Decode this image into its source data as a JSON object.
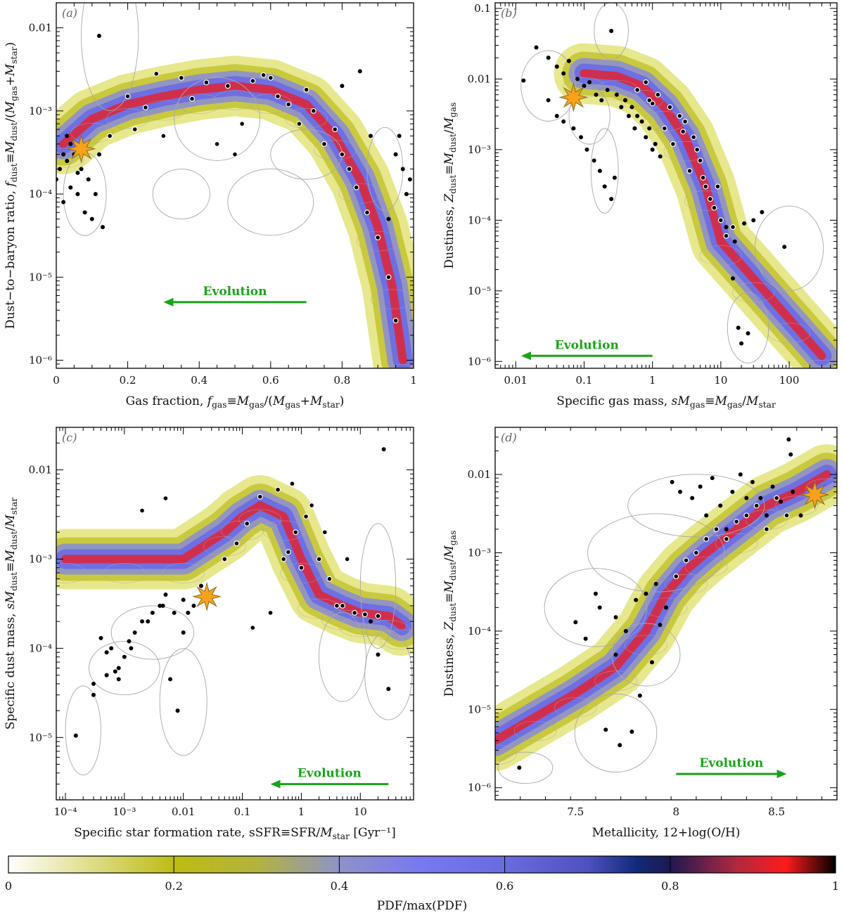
{
  "chart_data": [
    {
      "id": "a",
      "type": "scatter",
      "panel_label": "(a)",
      "xlabel": "Gas fraction, f_gas≡M_gas/(M_gas+M_star)",
      "ylabel": "Dust−to−baryon ratio, f_dust≡M_dust/(M_gas+M_star)",
      "xscale": "linear",
      "yscale": "log",
      "xlim": [
        0,
        1
      ],
      "ylim": [
        8e-07,
        0.02
      ],
      "xticks": [
        0,
        0.2,
        0.4,
        0.6,
        0.8,
        1
      ],
      "xtick_labels": [
        "0",
        "0.2",
        "0.4",
        "0.6",
        "0.8",
        "1"
      ],
      "yticks": [
        1e-06,
        1e-05,
        0.0001,
        0.001,
        0.01
      ],
      "ytick_labels": [
        "10⁻⁶",
        "10⁻⁵",
        "10⁻⁴",
        "10⁻³",
        "0.01"
      ],
      "evolution": {
        "label": "Evolution",
        "from_x": 0.7,
        "to_x": 0.3,
        "y": 5e-06
      },
      "milky_way_star": {
        "x": 0.07,
        "y": 0.00035
      },
      "pdf_ridge": {
        "x": [
          0.02,
          0.1,
          0.2,
          0.3,
          0.4,
          0.5,
          0.6,
          0.7,
          0.78,
          0.85,
          0.9,
          0.94,
          0.97
        ],
        "y": [
          0.0004,
          0.0008,
          0.0012,
          0.0015,
          0.0018,
          0.002,
          0.0018,
          0.0012,
          0.0005,
          0.00015,
          4e-05,
          8e-06,
          1e-06
        ]
      },
      "points_highlight": {
        "x": [
          0.35,
          0.42,
          0.48,
          0.55,
          0.6,
          0.62,
          0.65,
          0.7,
          0.72,
          0.78,
          0.8,
          0.82,
          0.84,
          0.87,
          0.9,
          0.93,
          0.95,
          0.2,
          0.25,
          0.3,
          0.45,
          0.5,
          0.15,
          0.22,
          0.28,
          0.38,
          0.52,
          0.58,
          0.68,
          0.75
        ],
        "y": [
          0.0025,
          0.0022,
          0.002,
          0.0023,
          0.0025,
          0.0015,
          0.0012,
          0.0018,
          0.001,
          0.0006,
          0.0003,
          0.0002,
          0.00012,
          6e-05,
          3e-05,
          1e-05,
          3e-06,
          0.0015,
          0.0011,
          0.0005,
          0.0004,
          0.0003,
          0.0005,
          0.0006,
          0.0028,
          0.0014,
          0.0007,
          0.0027,
          0.0007,
          0.0004
        ]
      },
      "points_plain": {
        "x": [
          0.0,
          0.01,
          0.02,
          0.03,
          0.04,
          0.05,
          0.06,
          0.08,
          0.1,
          0.12,
          0.13,
          0.02,
          0.04,
          0.06,
          0.09,
          0.11,
          0.07,
          0.03,
          0.12,
          0.97,
          0.98,
          0.95,
          0.96,
          0.99,
          0.93,
          0.88,
          0.85,
          0.8
        ],
        "y": [
          0.00015,
          0.0002,
          8e-05,
          0.00025,
          0.00012,
          0.0003,
          0.0001,
          6e-05,
          5e-05,
          0.008,
          4e-05,
          0.0003,
          0.0004,
          0.00018,
          0.00015,
          0.0001,
          0.0002,
          0.0005,
          0.0003,
          0.0002,
          0.0001,
          0.0003,
          0.0005,
          0.00015,
          5e-05,
          0.0005,
          0.003,
          0.002
        ]
      },
      "ellipses": [
        [
          0.15,
          0.008,
          0.08,
          0.9
        ],
        [
          0.08,
          0.0001,
          0.06,
          0.5
        ],
        [
          0.6,
          8e-05,
          0.12,
          0.4
        ],
        [
          0.35,
          0.0001,
          0.08,
          0.3
        ],
        [
          0.92,
          0.0002,
          0.05,
          0.5
        ],
        [
          0.7,
          0.0003,
          0.1,
          0.3
        ],
        [
          0.45,
          0.0008,
          0.12,
          0.5
        ]
      ]
    },
    {
      "id": "b",
      "type": "scatter",
      "panel_label": "(b)",
      "xlabel": "Specific gas mass, sM_gas≡M_gas/M_star",
      "ylabel": "Dustiness, Z_dust≡M_dust/M_gas",
      "xscale": "log",
      "yscale": "log",
      "xlim": [
        0.005,
        500
      ],
      "ylim": [
        8e-07,
        0.12
      ],
      "xticks": [
        0.01,
        0.1,
        1,
        10,
        100
      ],
      "xtick_labels": [
        "0.01",
        "0.1",
        "1",
        "10",
        "100"
      ],
      "yticks": [
        1e-06,
        1e-05,
        0.0001,
        0.001,
        0.01,
        0.1
      ],
      "ytick_labels": [
        "10⁻⁶",
        "10⁻⁵",
        "10⁻⁴",
        "10⁻³",
        "0.01",
        "0.1"
      ],
      "evolution": {
        "label": "Evolution",
        "from_x": 1,
        "to_x": 0.012,
        "y": 1.2e-06
      },
      "milky_way_star": {
        "x": 0.07,
        "y": 0.0055
      },
      "pdf_ridge": {
        "x": [
          0.1,
          0.3,
          0.7,
          1.5,
          3,
          6,
          10,
          30,
          100,
          300
        ],
        "y": [
          0.012,
          0.011,
          0.008,
          0.004,
          0.0015,
          0.0003,
          5e-05,
          1.5e-05,
          4e-06,
          1.2e-06
        ]
      },
      "points_highlight": {
        "x": [
          0.8,
          1.2,
          1.8,
          2.5,
          3,
          4,
          5,
          6,
          8,
          1.5,
          2,
          0.6,
          3.5,
          7,
          10,
          12,
          4.5,
          2.8,
          1,
          0.9,
          5.5,
          9,
          15
        ],
        "y": [
          0.009,
          0.006,
          0.004,
          0.003,
          0.0025,
          0.0015,
          0.0007,
          0.0003,
          0.00015,
          0.002,
          0.0012,
          0.007,
          0.0005,
          0.0002,
          0.0001,
          6e-05,
          0.001,
          0.0018,
          0.0045,
          0.005,
          0.0004,
          0.0003,
          8e-05
        ]
      },
      "points_plain": {
        "x": [
          0.013,
          0.02,
          0.03,
          0.04,
          0.05,
          0.06,
          0.08,
          0.1,
          0.12,
          0.15,
          0.18,
          0.22,
          0.25,
          0.3,
          0.35,
          0.4,
          0.45,
          0.5,
          0.55,
          0.6,
          0.7,
          0.8,
          0.9,
          1.0,
          1.1,
          1.3,
          0.03,
          0.04,
          0.05,
          0.07,
          0.09,
          0.11,
          0.14,
          0.17,
          0.2,
          0.25,
          0.28,
          85,
          15,
          18,
          20,
          25,
          30,
          40,
          12,
          16,
          22
        ],
        "y": [
          0.0095,
          0.028,
          0.02,
          0.015,
          0.012,
          0.018,
          0.01,
          0.008,
          0.009,
          0.006,
          0.005,
          0.007,
          0.048,
          0.006,
          0.004,
          0.005,
          0.003,
          0.004,
          0.002,
          0.003,
          0.0025,
          0.0015,
          0.002,
          0.001,
          0.0012,
          0.0008,
          0.005,
          0.003,
          0.0025,
          0.002,
          0.0015,
          0.001,
          0.0007,
          0.0005,
          0.0003,
          0.0002,
          0.0004,
          4.2e-05,
          1.5e-05,
          3e-06,
          1.8e-06,
          2.5e-06,
          0.0001,
          0.00013,
          8e-05,
          5e-05,
          9e-05
        ]
      },
      "ellipses": [
        [
          0.25,
          0.048,
          0.25,
          0.4
        ],
        [
          0.03,
          0.008,
          0.4,
          0.5
        ],
        [
          100,
          4e-05,
          0.5,
          0.6
        ],
        [
          25,
          3e-06,
          0.3,
          0.5
        ],
        [
          0.12,
          0.003,
          0.3,
          0.4
        ],
        [
          0.2,
          0.0005,
          0.2,
          0.6
        ]
      ]
    },
    {
      "id": "c",
      "type": "scatter",
      "panel_label": "(c)",
      "xlabel": "Specific star formation rate, sSFR≡SFR/M_star [Gyr⁻¹]",
      "ylabel": "Specific dust mass, sM_dust≡M_dust/M_star",
      "xscale": "log",
      "yscale": "log",
      "xlim": [
        7e-05,
        80
      ],
      "ylim": [
        2e-06,
        0.03
      ],
      "xticks": [
        0.0001,
        0.001,
        0.01,
        0.1,
        1,
        10
      ],
      "xtick_labels": [
        "10⁻⁴",
        "10⁻³",
        "0.01",
        "0.1",
        "1",
        "10"
      ],
      "yticks": [
        1e-05,
        0.0001,
        0.001,
        0.01
      ],
      "ytick_labels": [
        "10⁻⁵",
        "10⁻⁴",
        "10⁻³",
        "0.01"
      ],
      "evolution": {
        "label": "Evolution",
        "from_x": 30,
        "to_x": 0.3,
        "y": 3e-06
      },
      "milky_way_star": {
        "x": 0.025,
        "y": 0.00038
      },
      "pdf_ridge": {
        "x": [
          0.0001,
          0.001,
          0.01,
          0.05,
          0.1,
          0.2,
          0.5,
          1,
          2,
          5,
          10,
          30,
          50
        ],
        "y": [
          0.001,
          0.001,
          0.001,
          0.002,
          0.003,
          0.004,
          0.003,
          0.001,
          0.0004,
          0.0003,
          0.00025,
          0.00023,
          0.00018
        ]
      },
      "points_highlight": {
        "x": [
          0.002,
          0.005,
          0.15,
          0.3,
          0.5,
          0.8,
          1.2,
          2,
          3,
          4,
          5,
          8,
          12,
          20,
          0.05,
          0.08,
          0.12,
          0.2,
          0.4,
          0.7,
          1.5,
          2.5,
          6,
          0.6,
          1
        ],
        "y": [
          0.0035,
          0.0048,
          0.00017,
          0.00025,
          0.001,
          0.002,
          0.003,
          0.001,
          0.0006,
          0.0003,
          0.0003,
          0.00025,
          0.00024,
          0.00023,
          0.001,
          0.0015,
          0.0025,
          0.005,
          0.006,
          0.007,
          0.004,
          0.002,
          0.001,
          0.0012,
          0.0008
        ]
      },
      "points_plain": {
        "x": [
          0.00015,
          0.0003,
          0.0004,
          0.0005,
          0.0006,
          0.0007,
          0.0008,
          0.001,
          0.0012,
          0.0015,
          0.002,
          0.003,
          0.004,
          0.005,
          0.006,
          0.008,
          0.01,
          0.012,
          0.015,
          0.02,
          0.0003,
          0.0005,
          0.0008,
          0.0013,
          0.0025,
          0.0045,
          0.007,
          0.01,
          25,
          30,
          20,
          15
        ],
        "y": [
          1.05e-05,
          4e-05,
          0.00013,
          5e-05,
          0.0001,
          5.5e-05,
          4.5e-05,
          8e-05,
          0.00012,
          0.00015,
          0.0002,
          0.00025,
          0.0003,
          0.0004,
          4.5e-05,
          2e-05,
          0.00015,
          0.00025,
          0.0003,
          0.0005,
          3e-05,
          9e-05,
          6e-05,
          0.0001,
          0.0002,
          0.0003,
          0.00025,
          0.00035,
          0.017,
          3.5e-05,
          8.5e-05,
          0.0002
        ]
      },
      "ellipses": [
        [
          0.0002,
          1.2e-05,
          0.3,
          0.5
        ],
        [
          0.001,
          6e-05,
          0.6,
          0.3
        ],
        [
          0.01,
          2.5e-05,
          0.4,
          0.6
        ],
        [
          20,
          0.0005,
          0.3,
          0.7
        ],
        [
          30,
          5e-05,
          0.4,
          0.5
        ],
        [
          5,
          8e-05,
          0.4,
          0.5
        ],
        [
          0.003,
          0.00015,
          0.7,
          0.3
        ]
      ]
    },
    {
      "id": "d",
      "type": "scatter",
      "panel_label": "(d)",
      "xlabel": "Metallicity, 12+log(O/H)",
      "ylabel": "Dustiness, Z_dust≡M_dust/M_gas",
      "xscale": "linear",
      "yscale": "log",
      "xlim": [
        7.1,
        8.8
      ],
      "ylim": [
        7e-07,
        0.04
      ],
      "xticks": [
        7.5,
        8,
        8.5
      ],
      "xtick_labels": [
        "7.5",
        "8",
        "8.5"
      ],
      "yticks": [
        1e-06,
        1e-05,
        0.0001,
        0.001,
        0.01
      ],
      "ytick_labels": [
        "10⁻⁶",
        "10⁻⁵",
        "10⁻⁴",
        "10⁻³",
        "0.01"
      ],
      "evolution": {
        "label": "Evolution",
        "from_x": 8.0,
        "to_x": 8.55,
        "y": 1.5e-06
      },
      "milky_way_star": {
        "x": 8.69,
        "y": 0.0055
      },
      "pdf_ridge": {
        "x": [
          7.1,
          7.3,
          7.5,
          7.7,
          7.85,
          7.95,
          8.05,
          8.15,
          8.3,
          8.45,
          8.6,
          8.75
        ],
        "y": [
          4e-06,
          8e-06,
          1.6e-05,
          3.5e-05,
          0.0001,
          0.0003,
          0.0006,
          0.001,
          0.002,
          0.004,
          0.006,
          0.01
        ]
      },
      "points_highlight": {
        "x": [
          8.0,
          8.05,
          8.1,
          8.15,
          8.2,
          8.25,
          8.3,
          8.35,
          8.4,
          8.45,
          8.5,
          8.55
        ],
        "y": [
          0.0005,
          0.0008,
          0.001,
          0.0015,
          0.002,
          0.0015,
          0.0025,
          0.003,
          0.004,
          0.002,
          0.005,
          0.003
        ]
      },
      "points_plain": {
        "x": [
          7.22,
          7.65,
          7.72,
          7.78,
          7.6,
          7.62,
          7.7,
          7.75,
          7.8,
          7.85,
          7.9,
          7.95,
          7.7,
          7.82,
          7.88,
          7.92,
          7.5,
          7.55,
          7.98,
          8.02,
          8.08,
          8.12,
          8.18,
          8.22,
          8.28,
          8.32,
          8.38,
          8.42,
          8.48,
          8.52,
          8.58,
          8.62,
          8.56,
          8.57,
          8.15,
          8.25,
          8.35,
          8.45
        ],
        "y": [
          1.8e-06,
          5.5e-06,
          3.5e-06,
          5.2e-06,
          0.0003,
          0.0002,
          0.00015,
          0.0001,
          0.00025,
          0.0003,
          0.0004,
          0.0002,
          5e-05,
          1.5e-05,
          4e-05,
          0.00012,
          0.00013,
          8e-05,
          0.008,
          0.006,
          0.005,
          0.007,
          0.009,
          0.004,
          0.006,
          0.01,
          0.008,
          0.005,
          0.007,
          0.0045,
          0.006,
          0.003,
          0.028,
          0.018,
          0.003,
          0.002,
          0.005,
          0.003
        ]
      },
      "ellipses": [
        [
          7.25,
          1.8e-06,
          0.08,
          0.2
        ],
        [
          7.7,
          5e-06,
          0.12,
          0.5
        ],
        [
          7.6,
          0.0002,
          0.15,
          0.5
        ],
        [
          7.9,
          0.001,
          0.2,
          0.5
        ],
        [
          8.1,
          0.004,
          0.2,
          0.4
        ],
        [
          7.85,
          5e-05,
          0.1,
          0.4
        ]
      ]
    }
  ],
  "colorbar": {
    "label": "PDF/max(PDF)",
    "ticks": [
      0,
      0.2,
      0.4,
      0.6,
      0.8,
      1
    ],
    "tick_labels": [
      "0",
      "0.2",
      "0.4",
      "0.6",
      "0.8",
      "1"
    ],
    "stops": [
      {
        "v": 0.0,
        "c": "#ffffff"
      },
      {
        "v": 0.2,
        "c": "#bdbc14"
      },
      {
        "v": 0.3,
        "c": "#b3b43c"
      },
      {
        "v": 0.4,
        "c": "#8f93c8"
      },
      {
        "v": 0.5,
        "c": "#7878f0"
      },
      {
        "v": 0.6,
        "c": "#6b6be0"
      },
      {
        "v": 0.7,
        "c": "#5050c0"
      },
      {
        "v": 0.76,
        "c": "#102a7a"
      },
      {
        "v": 0.8,
        "c": "#1e1850"
      },
      {
        "v": 0.88,
        "c": "#b02840"
      },
      {
        "v": 0.94,
        "c": "#ff1a1a"
      },
      {
        "v": 1.0,
        "c": "#000000"
      }
    ]
  },
  "colors": {
    "point_fill": "#000000",
    "highlight_stroke": "#ffffff",
    "evolution": "#18a418",
    "star_fill": "#f7a21b",
    "star_stroke": "#8a6a20",
    "ellipse": "#a8a8a8",
    "frame": "#000000"
  }
}
